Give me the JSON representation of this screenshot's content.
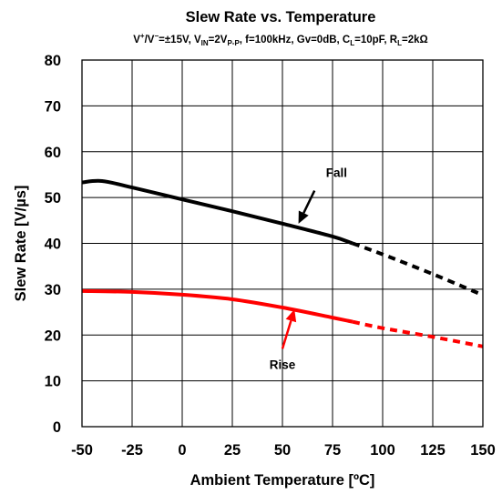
{
  "chart_data": {
    "type": "line",
    "title": "Slew Rate vs. Temperature",
    "conditions": {
      "t1": "V",
      "t1sup": "+",
      "t2": "/V",
      "t2sup": "−",
      "t3": "=±15V, V",
      "t3sub": "IN",
      "t4": "=2V",
      "t4sub": "P-P",
      "t5": ", f=100kHz, Gv=0dB, C",
      "t5sub": "L",
      "t6": "=10pF, R",
      "t6sub": "L",
      "t7": "=2kΩ"
    },
    "xlabel": "Ambient Temperature [ºC]",
    "ylabel": "Slew Rate [V/µs]",
    "xlim": [
      -50,
      150
    ],
    "ylim": [
      0,
      80
    ],
    "xticks": [
      -50,
      -25,
      0,
      25,
      50,
      75,
      100,
      125,
      150
    ],
    "yticks": [
      0,
      10,
      20,
      30,
      40,
      50,
      60,
      70,
      80
    ],
    "grid": true,
    "series": [
      {
        "name": "Fall",
        "color": "#000000",
        "solid": [
          [
            -50,
            53.3
          ],
          [
            -40,
            53.6
          ],
          [
            -25,
            52.2
          ],
          [
            0,
            49.6
          ],
          [
            25,
            47.0
          ],
          [
            50,
            44.3
          ],
          [
            75,
            41.5
          ],
          [
            85,
            40.0
          ]
        ],
        "dashed": [
          [
            85,
            40.0
          ],
          [
            100,
            37.6
          ],
          [
            125,
            33.3
          ],
          [
            150,
            28.7
          ]
        ]
      },
      {
        "name": "Rise",
        "color": "#ff0000",
        "solid": [
          [
            -50,
            29.6
          ],
          [
            -25,
            29.4
          ],
          [
            0,
            28.8
          ],
          [
            25,
            27.8
          ],
          [
            50,
            26.0
          ],
          [
            75,
            23.8
          ],
          [
            85,
            22.9
          ]
        ],
        "dashed": [
          [
            85,
            22.9
          ],
          [
            100,
            21.5
          ],
          [
            125,
            19.6
          ],
          [
            150,
            17.5
          ]
        ]
      }
    ],
    "annotations": [
      {
        "label": "Fall",
        "text_at": [
          77,
          55.5
        ],
        "arrow_from": [
          66,
          51.5
        ],
        "arrow_to": [
          58,
          44.3
        ]
      },
      {
        "label": "Rise",
        "text_at": [
          50,
          13.6
        ],
        "arrow_from": [
          50,
          17.0
        ],
        "arrow_to": [
          56,
          25.6
        ]
      }
    ]
  }
}
